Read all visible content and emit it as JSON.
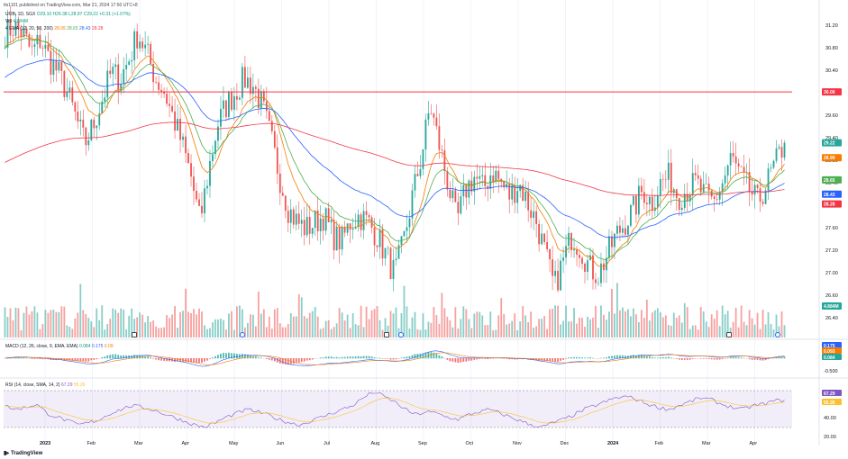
{
  "published": "tts1101 published on TradingView.com, Mar 21, 2024 17:50 UTC+8",
  "symbol": {
    "name": "UOB, 1D, SGX",
    "o": "O29.10",
    "h": "H29.38",
    "l": "L28.97",
    "c": "C29.22",
    "chg": "+0.31 (+1.07%)"
  },
  "volume_label": "Vol",
  "volume_value": "4.884M",
  "ema_label": "4 EMA (12, 20, 50, 200)",
  "ema_values": [
    "28.99",
    "28.65",
    "28.43",
    "28.28"
  ],
  "macd_label": "MACD (12, 26, close, 9, EMA, EMA)",
  "macd_values": [
    "0.084",
    "0.175",
    "0.09"
  ],
  "rsi_label": "RSI (14, close, SMA, 14, 2)",
  "rsi_values": [
    "67.29",
    "55.26"
  ],
  "logo": "TradingView",
  "colors": {
    "up": "#26a69a",
    "down": "#ef5350",
    "ema12": "#f57c00",
    "ema20": "#4caf50",
    "ema50": "#2962ff",
    "ema200": "#f23645",
    "rsi": "#7e57c2",
    "rsi_ma": "#fbc02d",
    "hline": "#f23645"
  },
  "chart_data": {
    "type": "candlestick",
    "y_range": [
      26.3,
      31.3
    ],
    "price_ticks": [
      "31.20",
      "30.80",
      "30.40",
      "30.20",
      "29.60",
      "29.40",
      "28.80",
      "28.40",
      "28.00",
      "27.60",
      "27.20",
      "27.00",
      "26.60",
      "26.40"
    ],
    "price_tags": [
      {
        "label": "30.00",
        "value": 30.0,
        "color": "#f23645"
      },
      {
        "label": "29.22",
        "value": 29.22,
        "color": "#26a69a"
      },
      {
        "label": "28.99",
        "value": 28.99,
        "color": "#f57c00"
      },
      {
        "label": "28.65",
        "value": 28.65,
        "color": "#4caf50"
      },
      {
        "label": "28.43",
        "value": 28.43,
        "color": "#2962ff"
      },
      {
        "label": "28.28",
        "value": 28.28,
        "color": "#f23645"
      },
      {
        "label": "4.884M",
        "value": 26.8,
        "color": "#26a69a"
      }
    ],
    "horizontal_line": 30.0,
    "x_labels": [
      "2023",
      "Feb",
      "Mar",
      "Apr",
      "May",
      "Jun",
      "Jul",
      "Aug",
      "Sep",
      "Oct",
      "Nov",
      "Dec",
      "2024",
      "Feb",
      "Mar",
      "Apr"
    ],
    "approx_closes": [
      30.9,
      31.0,
      30.9,
      30.6,
      30.8,
      30.5,
      30.3,
      30.0,
      29.6,
      29.2,
      29.5,
      29.9,
      30.3,
      30.2,
      30.5,
      30.9,
      30.6,
      30.2,
      30.0,
      29.6,
      29.2,
      28.7,
      28.0,
      28.8,
      29.5,
      29.8,
      30.0,
      30.2,
      30.1,
      29.8,
      29.3,
      28.7,
      28.2,
      28.0,
      27.9,
      28.0,
      28.1,
      27.8,
      27.7,
      28.0,
      28.1,
      28.0,
      27.8,
      27.5,
      27.2,
      27.7,
      28.4,
      29.0,
      29.8,
      29.2,
      28.6,
      28.0,
      28.5,
      28.7,
      28.5,
      28.8,
      28.6,
      28.4,
      28.6,
      28.3,
      28.0,
      27.5,
      27.0,
      27.4,
      27.8,
      27.6,
      27.3,
      27.2,
      27.5,
      27.8,
      28.0,
      28.2,
      28.5,
      28.3,
      28.6,
      28.7,
      28.4,
      28.5,
      28.6,
      28.4,
      28.3,
      28.6,
      29.0,
      28.7,
      28.5,
      28.3,
      28.6,
      28.9,
      29.22
    ],
    "volume_axis_ticks": [
      "26.80",
      "26.60",
      "26.40"
    ],
    "macd_ticks": [
      "0.175",
      "0.093",
      "0.084",
      "-0.500"
    ],
    "rsi_ticks": [
      "67.29",
      "55.26",
      "40.00",
      "20.00"
    ],
    "rsi_values": [
      60,
      55,
      58,
      62,
      50,
      45,
      40,
      35,
      38,
      42,
      50,
      55,
      60,
      58,
      55,
      50,
      45,
      40,
      35,
      32,
      38,
      45,
      50,
      55,
      52,
      48,
      42,
      38,
      35,
      40,
      45,
      50,
      55,
      60,
      70,
      78,
      72,
      65,
      55,
      48,
      52,
      50,
      45,
      42,
      48,
      52,
      55,
      50,
      45,
      40,
      35,
      32,
      38,
      42,
      48,
      55,
      60,
      65,
      70,
      72,
      68,
      62,
      58,
      55,
      60,
      65,
      70,
      68,
      62,
      58,
      55,
      60,
      62,
      66,
      67.29
    ]
  }
}
